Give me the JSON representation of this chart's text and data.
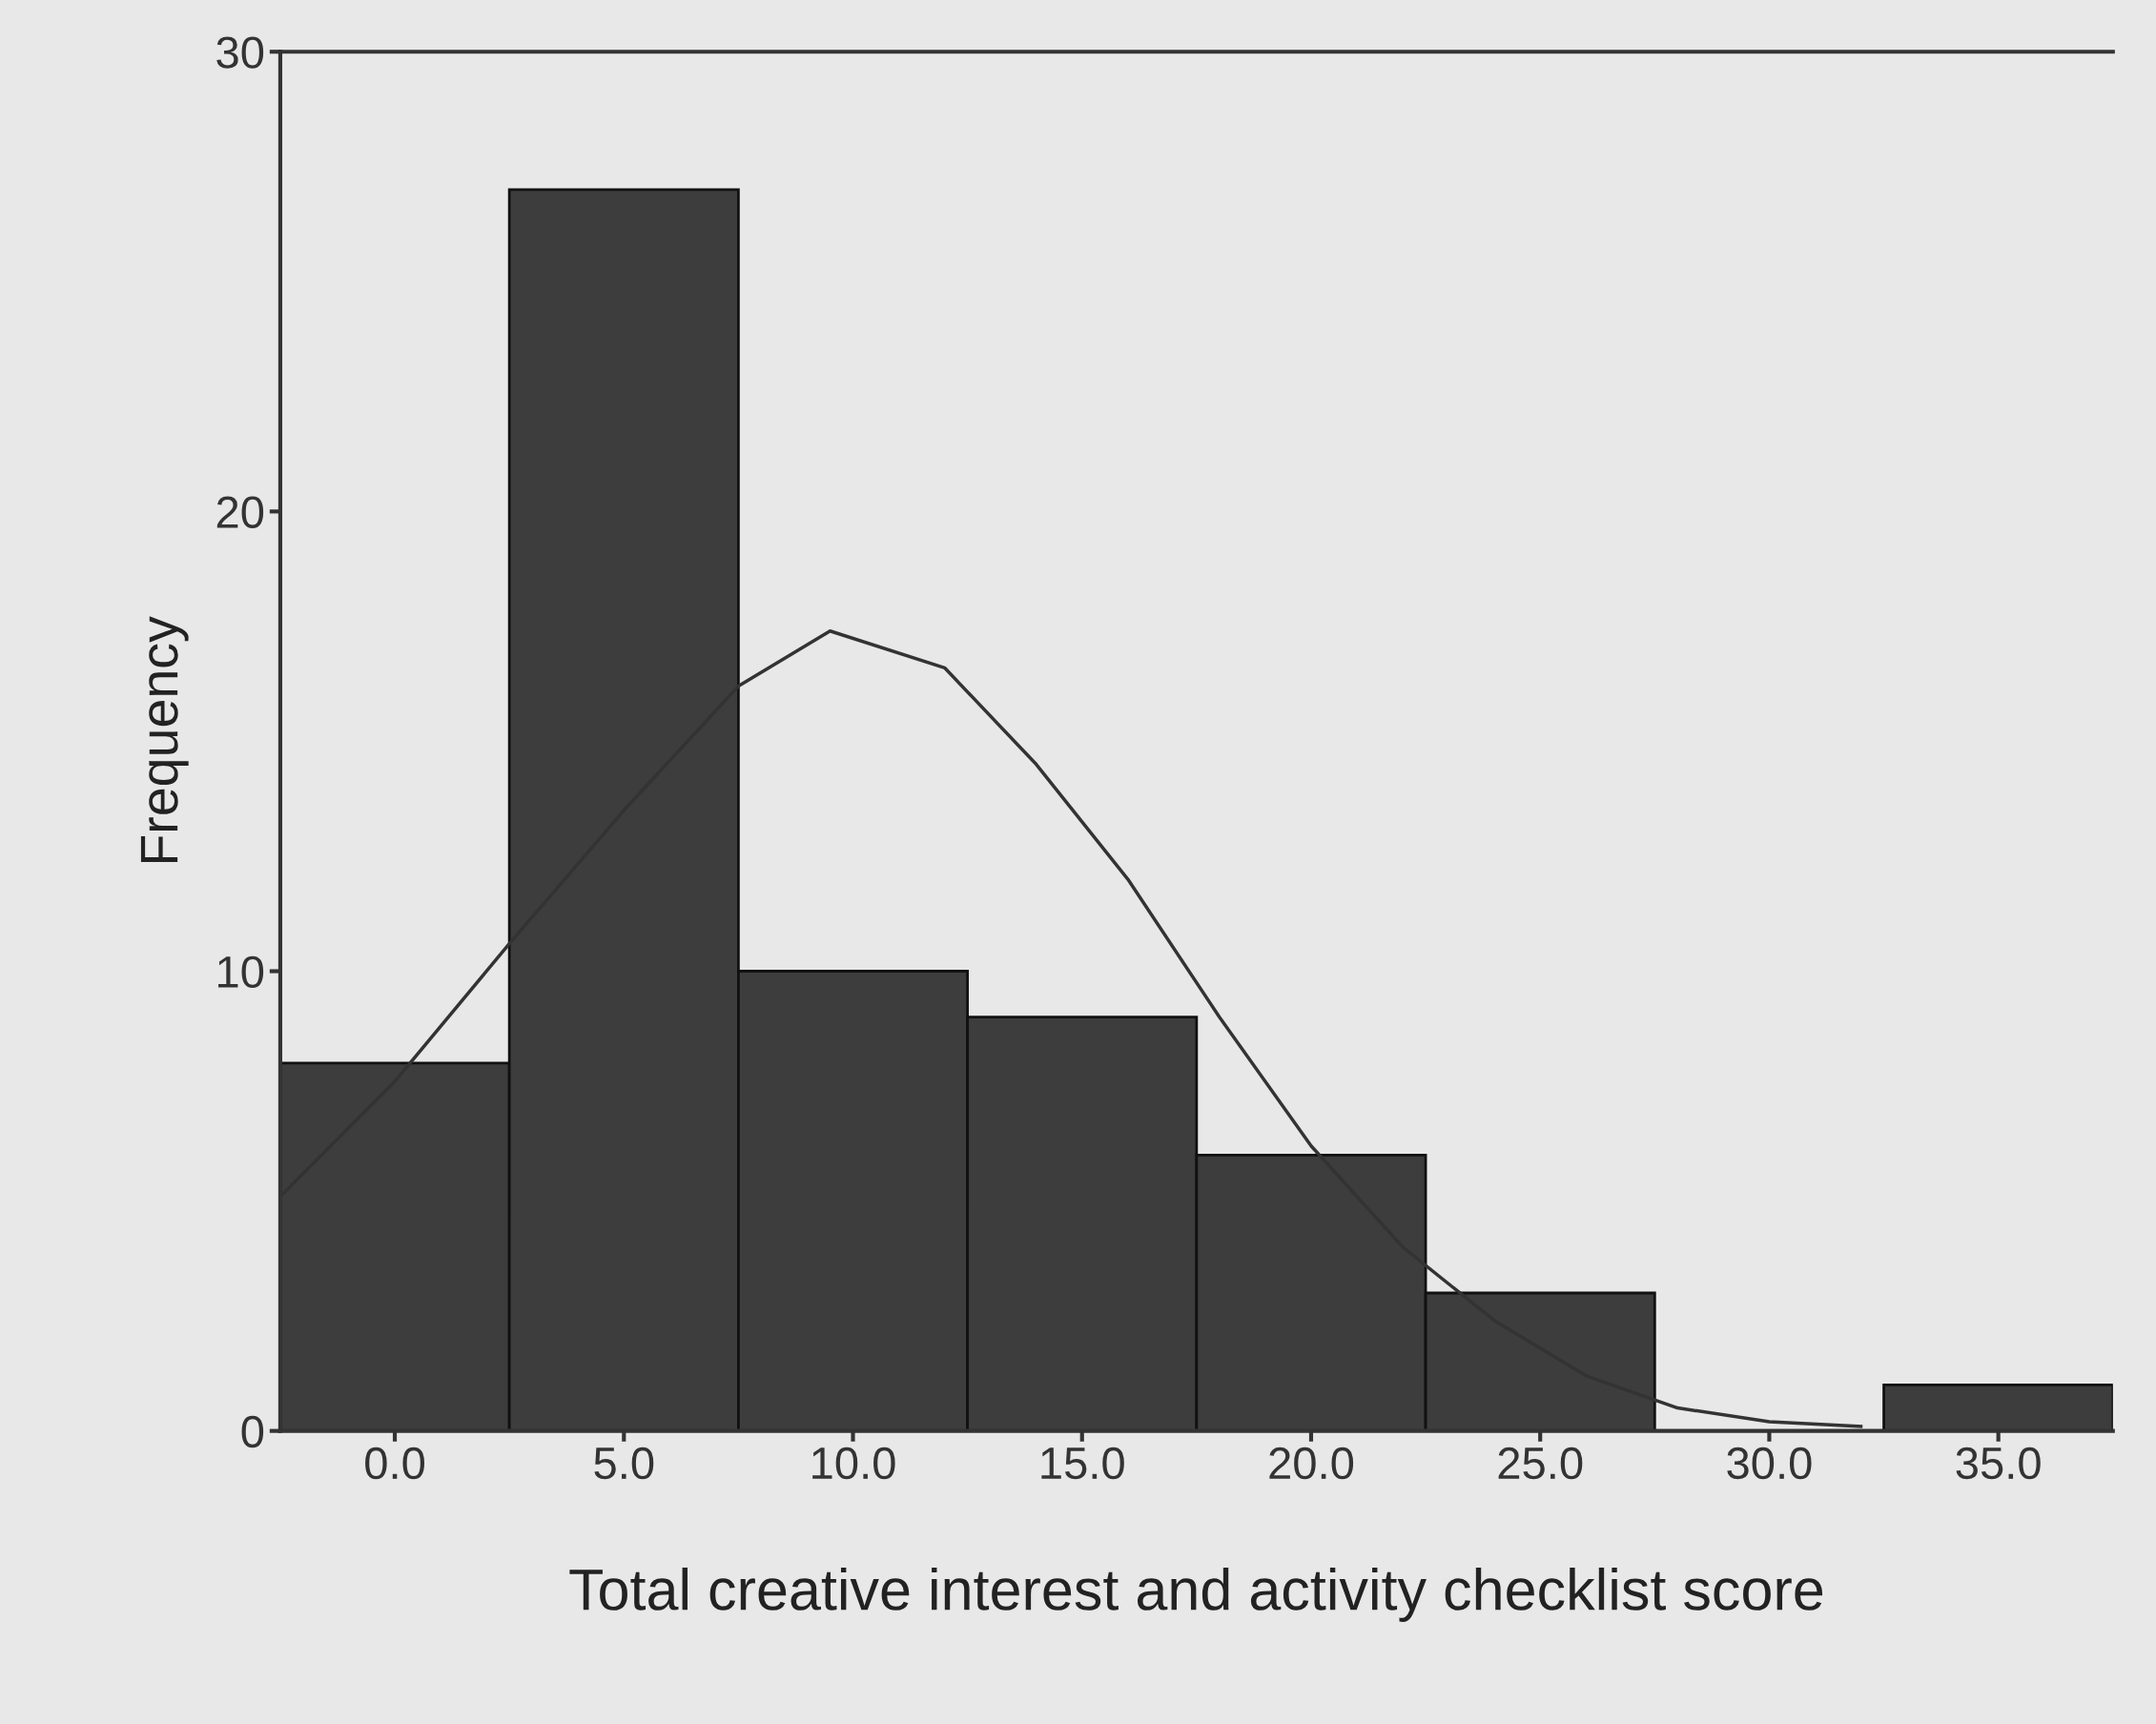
{
  "chart_data": {
    "type": "histogram",
    "xlabel": "Total creative interest and activity checklist score",
    "ylabel": "Frequency",
    "bins": [
      -2.5,
      2.5,
      7.5,
      12.5,
      17.5,
      22.5,
      27.5,
      32.5,
      37.5
    ],
    "values": [
      8,
      27,
      10,
      9,
      6,
      3,
      0,
      1
    ],
    "color": "#3d3d3d",
    "series": [
      {
        "type": "line",
        "color": "#333333",
        "x": [
          -2.5,
          0,
          2.5,
          5,
          7.5,
          9.5,
          12,
          14,
          16,
          18,
          20,
          22,
          24,
          26,
          28,
          30,
          32
        ],
        "values": [
          5.1,
          7.6,
          10.6,
          13.5,
          16.2,
          17.4,
          16.6,
          14.5,
          12.0,
          9.0,
          6.2,
          4.0,
          2.4,
          1.2,
          0.5,
          0.2,
          0.1
        ]
      }
    ],
    "xlim": [
      -2.5,
      37.5
    ],
    "ylim": [
      0,
      30
    ],
    "xticks": [
      {
        "value": 0,
        "label": "0.0"
      },
      {
        "value": 5,
        "label": "5.0"
      },
      {
        "value": 10,
        "label": "10.0"
      },
      {
        "value": 15,
        "label": "15.0"
      },
      {
        "value": 20,
        "label": "20.0"
      },
      {
        "value": 25,
        "label": "25.0"
      },
      {
        "value": 30,
        "label": "30.0"
      },
      {
        "value": 35,
        "label": "35.0"
      }
    ],
    "yticks": [
      0,
      10,
      20,
      30
    ],
    "grid": false,
    "legend": false
  }
}
